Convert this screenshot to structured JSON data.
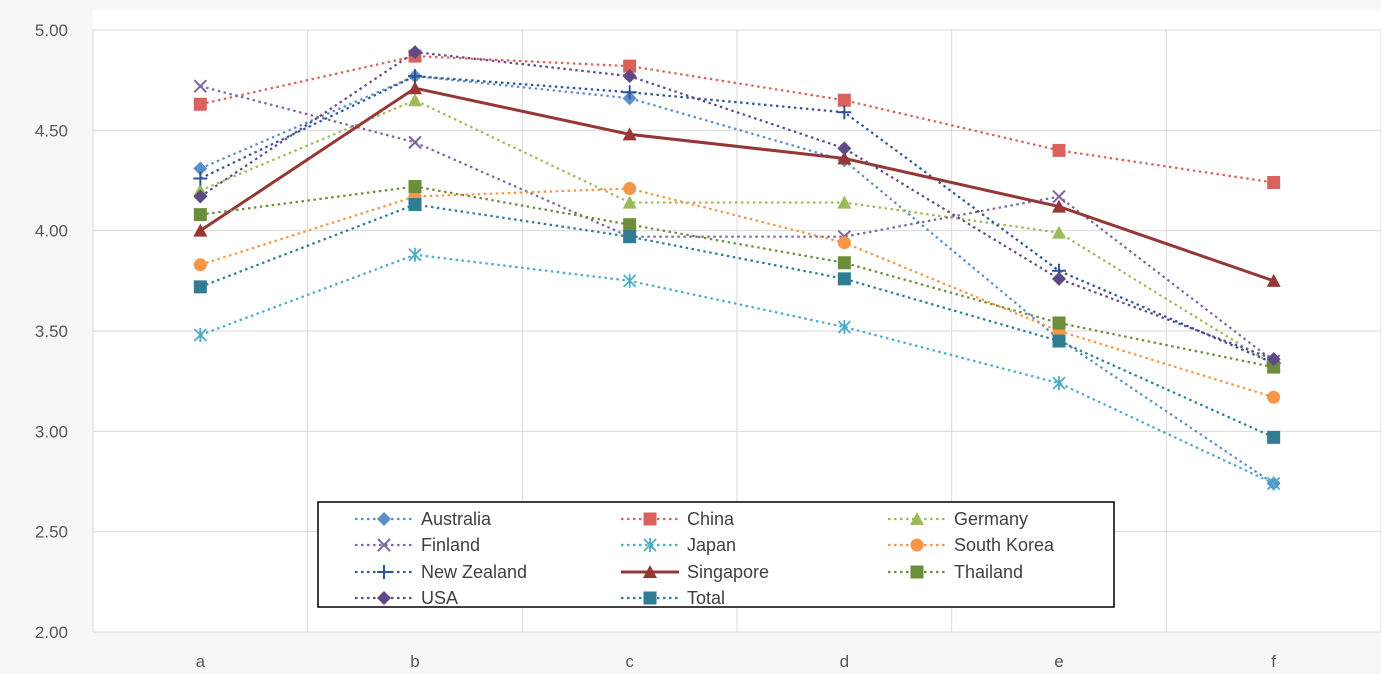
{
  "chart_data": {
    "type": "line",
    "categories": [
      "a",
      "b",
      "c",
      "d",
      "e",
      "f"
    ],
    "ylim": [
      2.0,
      5.0
    ],
    "yticks": [
      "2.00",
      "2.50",
      "3.00",
      "3.50",
      "4.00",
      "4.50",
      "5.00"
    ],
    "grid": "vertical and horizontal",
    "legend_position": "bottom-center",
    "series": [
      {
        "name": "Australia",
        "values": [
          4.31,
          4.77,
          4.66,
          4.35,
          3.46,
          2.74
        ],
        "color": "#5b8fc9",
        "marker": "diamond",
        "dash": "dotted"
      },
      {
        "name": "China",
        "values": [
          4.63,
          4.87,
          4.82,
          4.65,
          4.4,
          4.24
        ],
        "color": "#d9625e",
        "marker": "square",
        "dash": "dotted"
      },
      {
        "name": "Germany",
        "values": [
          4.2,
          4.65,
          4.14,
          4.14,
          3.99,
          3.33
        ],
        "color": "#9bbb59",
        "marker": "triangle",
        "dash": "dotted"
      },
      {
        "name": "Finland",
        "values": [
          4.72,
          4.44,
          3.97,
          3.97,
          4.17,
          3.35
        ],
        "color": "#8064a2",
        "marker": "x",
        "dash": "dotted"
      },
      {
        "name": "Japan",
        "values": [
          3.48,
          3.88,
          3.75,
          3.52,
          3.24,
          2.74
        ],
        "color": "#4bacc6",
        "marker": "asterisk",
        "dash": "dotted"
      },
      {
        "name": "South Korea",
        "values": [
          3.83,
          4.17,
          4.21,
          3.94,
          3.5,
          3.17
        ],
        "color": "#f79646",
        "marker": "circle",
        "dash": "dotted"
      },
      {
        "name": "New Zealand",
        "values": [
          4.26,
          4.77,
          4.69,
          4.59,
          3.8,
          3.34
        ],
        "color": "#2f5597",
        "marker": "plus",
        "dash": "dotted"
      },
      {
        "name": "Singapore",
        "values": [
          4.0,
          4.71,
          4.48,
          4.36,
          4.12,
          3.75
        ],
        "color": "#953735",
        "marker": "triangle",
        "dash": "solid"
      },
      {
        "name": "Thailand",
        "values": [
          4.08,
          4.22,
          4.03,
          3.84,
          3.54,
          3.32
        ],
        "color": "#6b8e3a",
        "marker": "square",
        "dash": "dotted"
      },
      {
        "name": "USA",
        "values": [
          4.17,
          4.89,
          4.77,
          4.41,
          3.76,
          3.36
        ],
        "color": "#5e4a86",
        "marker": "diamond",
        "dash": "dotted"
      },
      {
        "name": "Total",
        "values": [
          3.72,
          4.13,
          3.97,
          3.76,
          3.45,
          2.97
        ],
        "color": "#2e7d93",
        "marker": "square",
        "dash": "dotted"
      }
    ]
  }
}
